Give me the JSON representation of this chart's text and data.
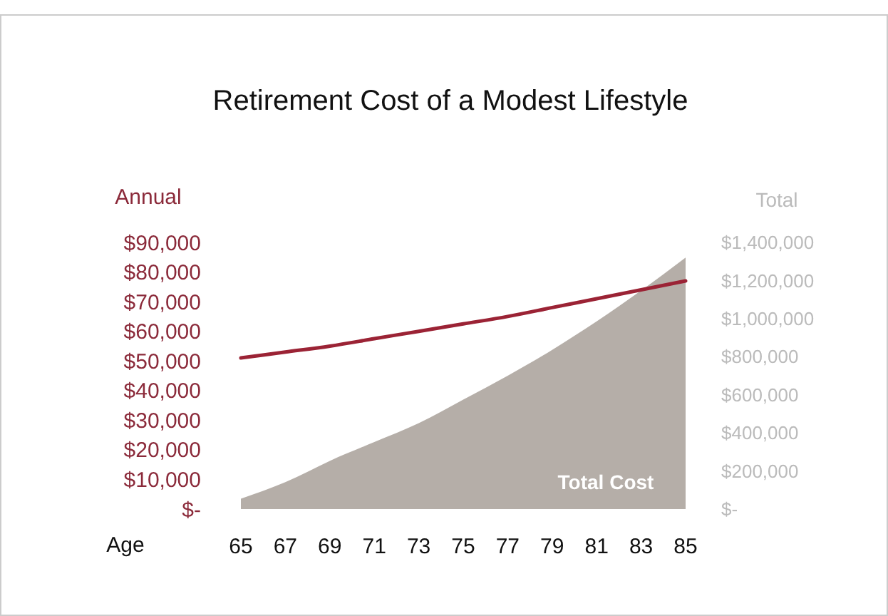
{
  "chart_data": {
    "type": "line",
    "title": "Retirement Cost of a Modest Lifestyle",
    "xlabel": "Age",
    "ylabel": "Annual",
    "y2label": "Total",
    "x": [
      65,
      67,
      69,
      71,
      73,
      75,
      77,
      79,
      81,
      83,
      85
    ],
    "series": [
      {
        "name": "Total Cost",
        "type": "area",
        "axis": "y2",
        "color": "#b5aea8",
        "values": [
          54000,
          141000,
          253000,
          352000,
          451000,
          575000,
          700000,
          836000,
          985000,
          1147000,
          1320000
        ]
      },
      {
        "type": "line",
        "color": "#9b2335",
        "values": [
          51000,
          53000,
          55000,
          57500,
          60000,
          62500,
          65000,
          68000,
          71000,
          74000,
          77000
        ]
      }
    ],
    "xlim": [
      65,
      85
    ],
    "xticks": [
      65,
      67,
      69,
      71,
      73,
      75,
      77,
      79,
      81,
      83,
      85
    ],
    "ylim": [
      0,
      90000
    ],
    "yticks": [
      {
        "value": 0,
        "label": "$-"
      },
      {
        "value": 10000,
        "label": "$10,000"
      },
      {
        "value": 20000,
        "label": "$20,000"
      },
      {
        "value": 30000,
        "label": "$30,000"
      },
      {
        "value": 40000,
        "label": "$40,000"
      },
      {
        "value": 50000,
        "label": "$50,000"
      },
      {
        "value": 60000,
        "label": "$60,000"
      },
      {
        "value": 70000,
        "label": "$70,000"
      },
      {
        "value": 80000,
        "label": "$80,000"
      },
      {
        "value": 90000,
        "label": "$90,000"
      }
    ],
    "y2lim": [
      0,
      1400000
    ],
    "y2ticks": [
      {
        "value": 0,
        "label": "$-"
      },
      {
        "value": 200000,
        "label": "$200,000"
      },
      {
        "value": 400000,
        "label": "$400,000"
      },
      {
        "value": 600000,
        "label": "$600,000"
      },
      {
        "value": 800000,
        "label": "$800,000"
      },
      {
        "value": 1000000,
        "label": "$1,000,000"
      },
      {
        "value": 1200000,
        "label": "$1,200,000"
      },
      {
        "value": 1400000,
        "label": "$1,400,000"
      }
    ],
    "grid": false
  }
}
